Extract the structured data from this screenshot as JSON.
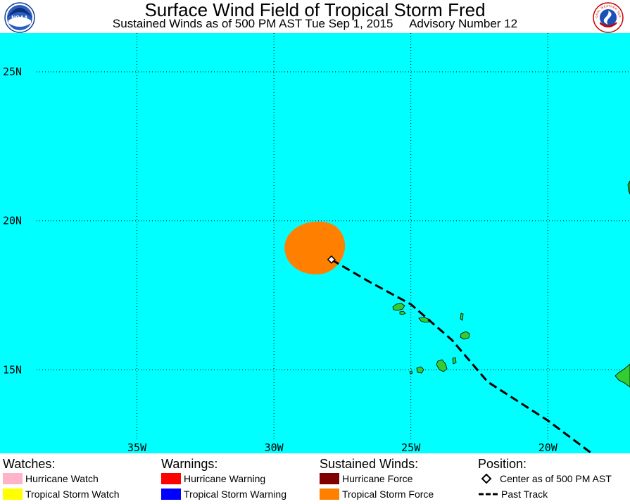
{
  "header": {
    "title": "Surface Wind Field of Tropical Storm Fred",
    "subtitle": "Sustained Winds as of 500 PM AST Tue Sep 1, 2015     Advisory Number 12",
    "logo_left_text": "NOAA",
    "logo_right_text": "NATIONAL WEATHER SERVICE"
  },
  "map": {
    "ocean_color": "#00ffff",
    "land_color": "#33cc33",
    "lon_range": [
      -40,
      -17
    ],
    "lat_range": [
      12.2,
      26.3
    ],
    "lat_labels": [
      "25N",
      "20N",
      "15N"
    ],
    "lon_labels": [
      "35W",
      "30W",
      "25W",
      "20W"
    ],
    "storm_center": {
      "lon": -27.9,
      "lat": 18.7
    },
    "tropical_storm_force_color": "#ff8000",
    "past_track": [
      {
        "lon": -27.9,
        "lat": 18.7
      },
      {
        "lon": -26.6,
        "lat": 18.0
      },
      {
        "lon": -25.0,
        "lat": 17.2
      },
      {
        "lon": -23.5,
        "lat": 16.0
      },
      {
        "lon": -22.2,
        "lat": 14.6
      },
      {
        "lon": -20.0,
        "lat": 13.3
      },
      {
        "lon": -18.4,
        "lat": 12.2
      }
    ]
  },
  "legend": {
    "watches": {
      "heading": "Watches:",
      "items": [
        {
          "label": "Hurricane Watch",
          "color": "#ffb3c8"
        },
        {
          "label": "Tropical Storm Watch",
          "color": "#ffff00"
        }
      ]
    },
    "warnings": {
      "heading": "Warnings:",
      "items": [
        {
          "label": "Hurricane Warning",
          "color": "#ff0000"
        },
        {
          "label": "Tropical Storm Warning",
          "color": "#0000ff"
        }
      ]
    },
    "winds": {
      "heading": "Sustained Winds:",
      "items": [
        {
          "label": "Hurricane Force",
          "color": "#800000"
        },
        {
          "label": "Tropical Storm Force",
          "color": "#ff8000"
        }
      ]
    },
    "position": {
      "heading": "Position:",
      "center_label": "Center as of 500 PM AST",
      "track_label": "Past Track"
    }
  }
}
